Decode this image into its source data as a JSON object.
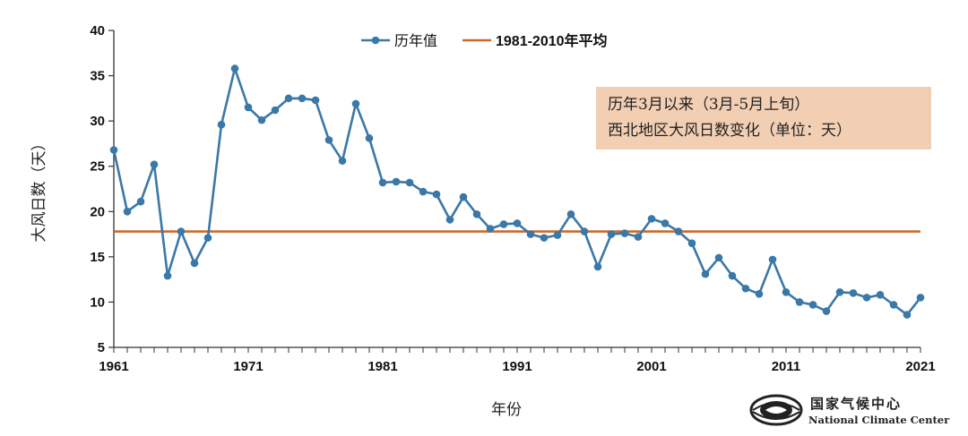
{
  "chart_data": {
    "type": "line",
    "title": "",
    "xlabel": "年份",
    "ylabel": "大风日数（天）",
    "xlim": [
      1961,
      2021
    ],
    "ylim": [
      5,
      40
    ],
    "x_ticks": [
      "1961",
      "1971",
      "1981",
      "1991",
      "2001",
      "2011",
      "2021"
    ],
    "y_ticks": [
      "5",
      "10",
      "15",
      "20",
      "25",
      "30",
      "35",
      "40"
    ],
    "grid": false,
    "legend_position": "top-center",
    "x": [
      1961,
      1962,
      1963,
      1964,
      1965,
      1966,
      1967,
      1968,
      1969,
      1970,
      1971,
      1972,
      1973,
      1974,
      1975,
      1976,
      1977,
      1978,
      1979,
      1980,
      1981,
      1982,
      1983,
      1984,
      1985,
      1986,
      1987,
      1988,
      1989,
      1990,
      1991,
      1992,
      1993,
      1994,
      1995,
      1996,
      1997,
      1998,
      1999,
      2000,
      2001,
      2002,
      2003,
      2004,
      2005,
      2006,
      2007,
      2008,
      2009,
      2010,
      2011,
      2012,
      2013,
      2014,
      2015,
      2016,
      2017,
      2018,
      2019,
      2020,
      2021
    ],
    "series": [
      {
        "name": "历年值",
        "color": "#3a78a8",
        "marker": "circle",
        "values": [
          26.8,
          20.0,
          21.1,
          25.2,
          12.9,
          17.8,
          14.3,
          17.1,
          29.6,
          35.8,
          31.5,
          30.1,
          31.2,
          32.5,
          32.5,
          32.3,
          27.9,
          25.6,
          31.9,
          28.1,
          23.2,
          23.3,
          23.2,
          22.2,
          21.9,
          19.1,
          21.6,
          19.7,
          18.1,
          18.6,
          18.7,
          17.5,
          17.1,
          17.4,
          19.7,
          17.8,
          13.9,
          17.5,
          17.6,
          17.2,
          19.2,
          18.7,
          17.8,
          16.5,
          13.1,
          14.9,
          12.9,
          11.5,
          10.9,
          14.7,
          11.1,
          10.0,
          9.7,
          9.0,
          11.1,
          11.0,
          10.5,
          10.8,
          9.7,
          8.6,
          10.5
        ]
      },
      {
        "name": "1981-2010年平均",
        "color": "#c96a2c",
        "constant": 17.8
      }
    ],
    "annotation": [
      "历年3月以来（3月-5月上旬）",
      "西北地区大风日数变化（单位：天）"
    ]
  },
  "logo": {
    "name_cn": "国家气候中心",
    "name_en": "National Climate Center"
  }
}
